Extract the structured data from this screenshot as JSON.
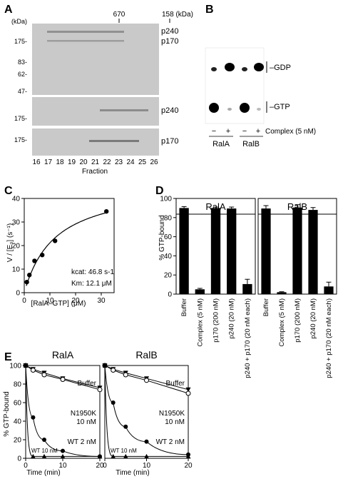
{
  "panels": {
    "A": {
      "letter": "A",
      "kda_label": "(kDa)",
      "marker_670": "670",
      "marker_158": "158 (kDa)",
      "mw_ladder": [
        "175-",
        "83-",
        "62-",
        "47-"
      ],
      "gel2_mw": "175-",
      "gel3_mw": "175-",
      "band_labels": [
        "p240",
        "p170",
        "p240",
        "p170"
      ],
      "fractions": [
        "16",
        "17",
        "18",
        "19",
        "20",
        "21",
        "22",
        "23",
        "24",
        "25",
        "26"
      ],
      "xlabel": "Fraction"
    },
    "B": {
      "letter": "B",
      "gdp_label": "GDP",
      "gtp_label": "GTP",
      "lane_signs": [
        "−",
        "+",
        "−",
        "+"
      ],
      "complex_label": "Complex (5 nM)",
      "groups": [
        "RalA",
        "RalB"
      ]
    },
    "C": {
      "letter": "C",
      "ylabel": "V / [E₀] (s⁻¹)",
      "xlabel": "[RalA–GTP] (μM)",
      "kcat": "kcat: 46.8 s-1",
      "km": "Km: 12.1 μM"
    },
    "D": {
      "letter": "D",
      "ylabel": "% GTP-bound"
    },
    "E": {
      "letter": "E",
      "ylabel": "% GTP-bound",
      "xlabel": "Time (min)",
      "labels": {
        "buffer": "Buffer",
        "n1950k_1": "N1950K",
        "n1950k_2": "10 nM",
        "wt2": "WT 2 nM",
        "wt10": "WT 10 nM"
      }
    }
  },
  "chart_data": [
    {
      "id": "C",
      "type": "scatter",
      "x": [
        1,
        2,
        4,
        7,
        12,
        32
      ],
      "y": [
        4.5,
        7.5,
        13.5,
        16,
        22,
        34.5
      ],
      "fit": "michaelis-menten",
      "xlim": [
        0,
        35
      ],
      "ylim": [
        0,
        40
      ],
      "xticks": [
        "0",
        "10",
        "20",
        "30"
      ],
      "yticks": [
        "0",
        "10",
        "20",
        "30",
        "40"
      ],
      "xlabel": "[RalA–GTP] (μM)",
      "ylabel": "V / [E₀] (s⁻¹)"
    },
    {
      "id": "D",
      "type": "bar",
      "categories": [
        "Buffer",
        "Complex (5 nM)",
        "p170 (200 nM)",
        "p240 (20 nM)",
        "p240 + p170 (20 nM each)"
      ],
      "series": [
        {
          "name": "RalA",
          "values": [
            90,
            5,
            90,
            89.5,
            10.5
          ],
          "errors": [
            1.5,
            1,
            1,
            1.5,
            5
          ]
        },
        {
          "name": "RalB",
          "values": [
            89.5,
            2,
            90.5,
            88,
            8
          ],
          "errors": [
            3,
            0.5,
            3,
            2.5,
            4.5
          ]
        }
      ],
      "ylim": [
        0,
        100
      ],
      "yticks": [
        "0",
        "20",
        "40",
        "60",
        "80",
        "100"
      ],
      "ylabel": "% GTP-bound"
    },
    {
      "id": "E",
      "type": "line",
      "groups": [
        "RalA",
        "RalB"
      ],
      "x": [
        0,
        2,
        5,
        10,
        20
      ],
      "xlim": [
        0,
        20
      ],
      "ylim": [
        0,
        100
      ],
      "xticks": [
        "0",
        "10",
        "20"
      ],
      "yticks": [
        "0",
        "20",
        "40",
        "60",
        "80",
        "100"
      ],
      "xlabel": "Time (min)",
      "ylabel": "% GTP-bound",
      "panels": [
        {
          "group": "RalA",
          "series": [
            {
              "name": "Buffer",
              "marker": "triangle-down",
              "values": [
                100,
                96,
                92,
                86,
                76
              ]
            },
            {
              "name": "N1950K 10 nM",
              "marker": "circle-open",
              "values": [
                100,
                95,
                90,
                85,
                74
              ]
            },
            {
              "name": "WT 2 nM",
              "marker": "circle",
              "values": [
                100,
                44,
                20,
                8,
                2
              ]
            },
            {
              "name": "WT 10 nM",
              "marker": "triangle-up",
              "values": [
                100,
                2,
                2,
                2,
                2
              ]
            }
          ]
        },
        {
          "group": "RalB",
          "series": [
            {
              "name": "Buffer",
              "marker": "triangle-down",
              "values": [
                100,
                96,
                92,
                86,
                74
              ]
            },
            {
              "name": "N1950K 10 nM",
              "marker": "circle-open",
              "values": [
                100,
                95,
                90,
                84,
                70
              ]
            },
            {
              "name": "WT 2 nM",
              "marker": "circle",
              "values": [
                100,
                60,
                34,
                18,
                4
              ]
            },
            {
              "name": "WT 10 nM",
              "marker": "triangle-up",
              "values": [
                100,
                2,
                2,
                2,
                2
              ]
            }
          ]
        }
      ]
    }
  ]
}
